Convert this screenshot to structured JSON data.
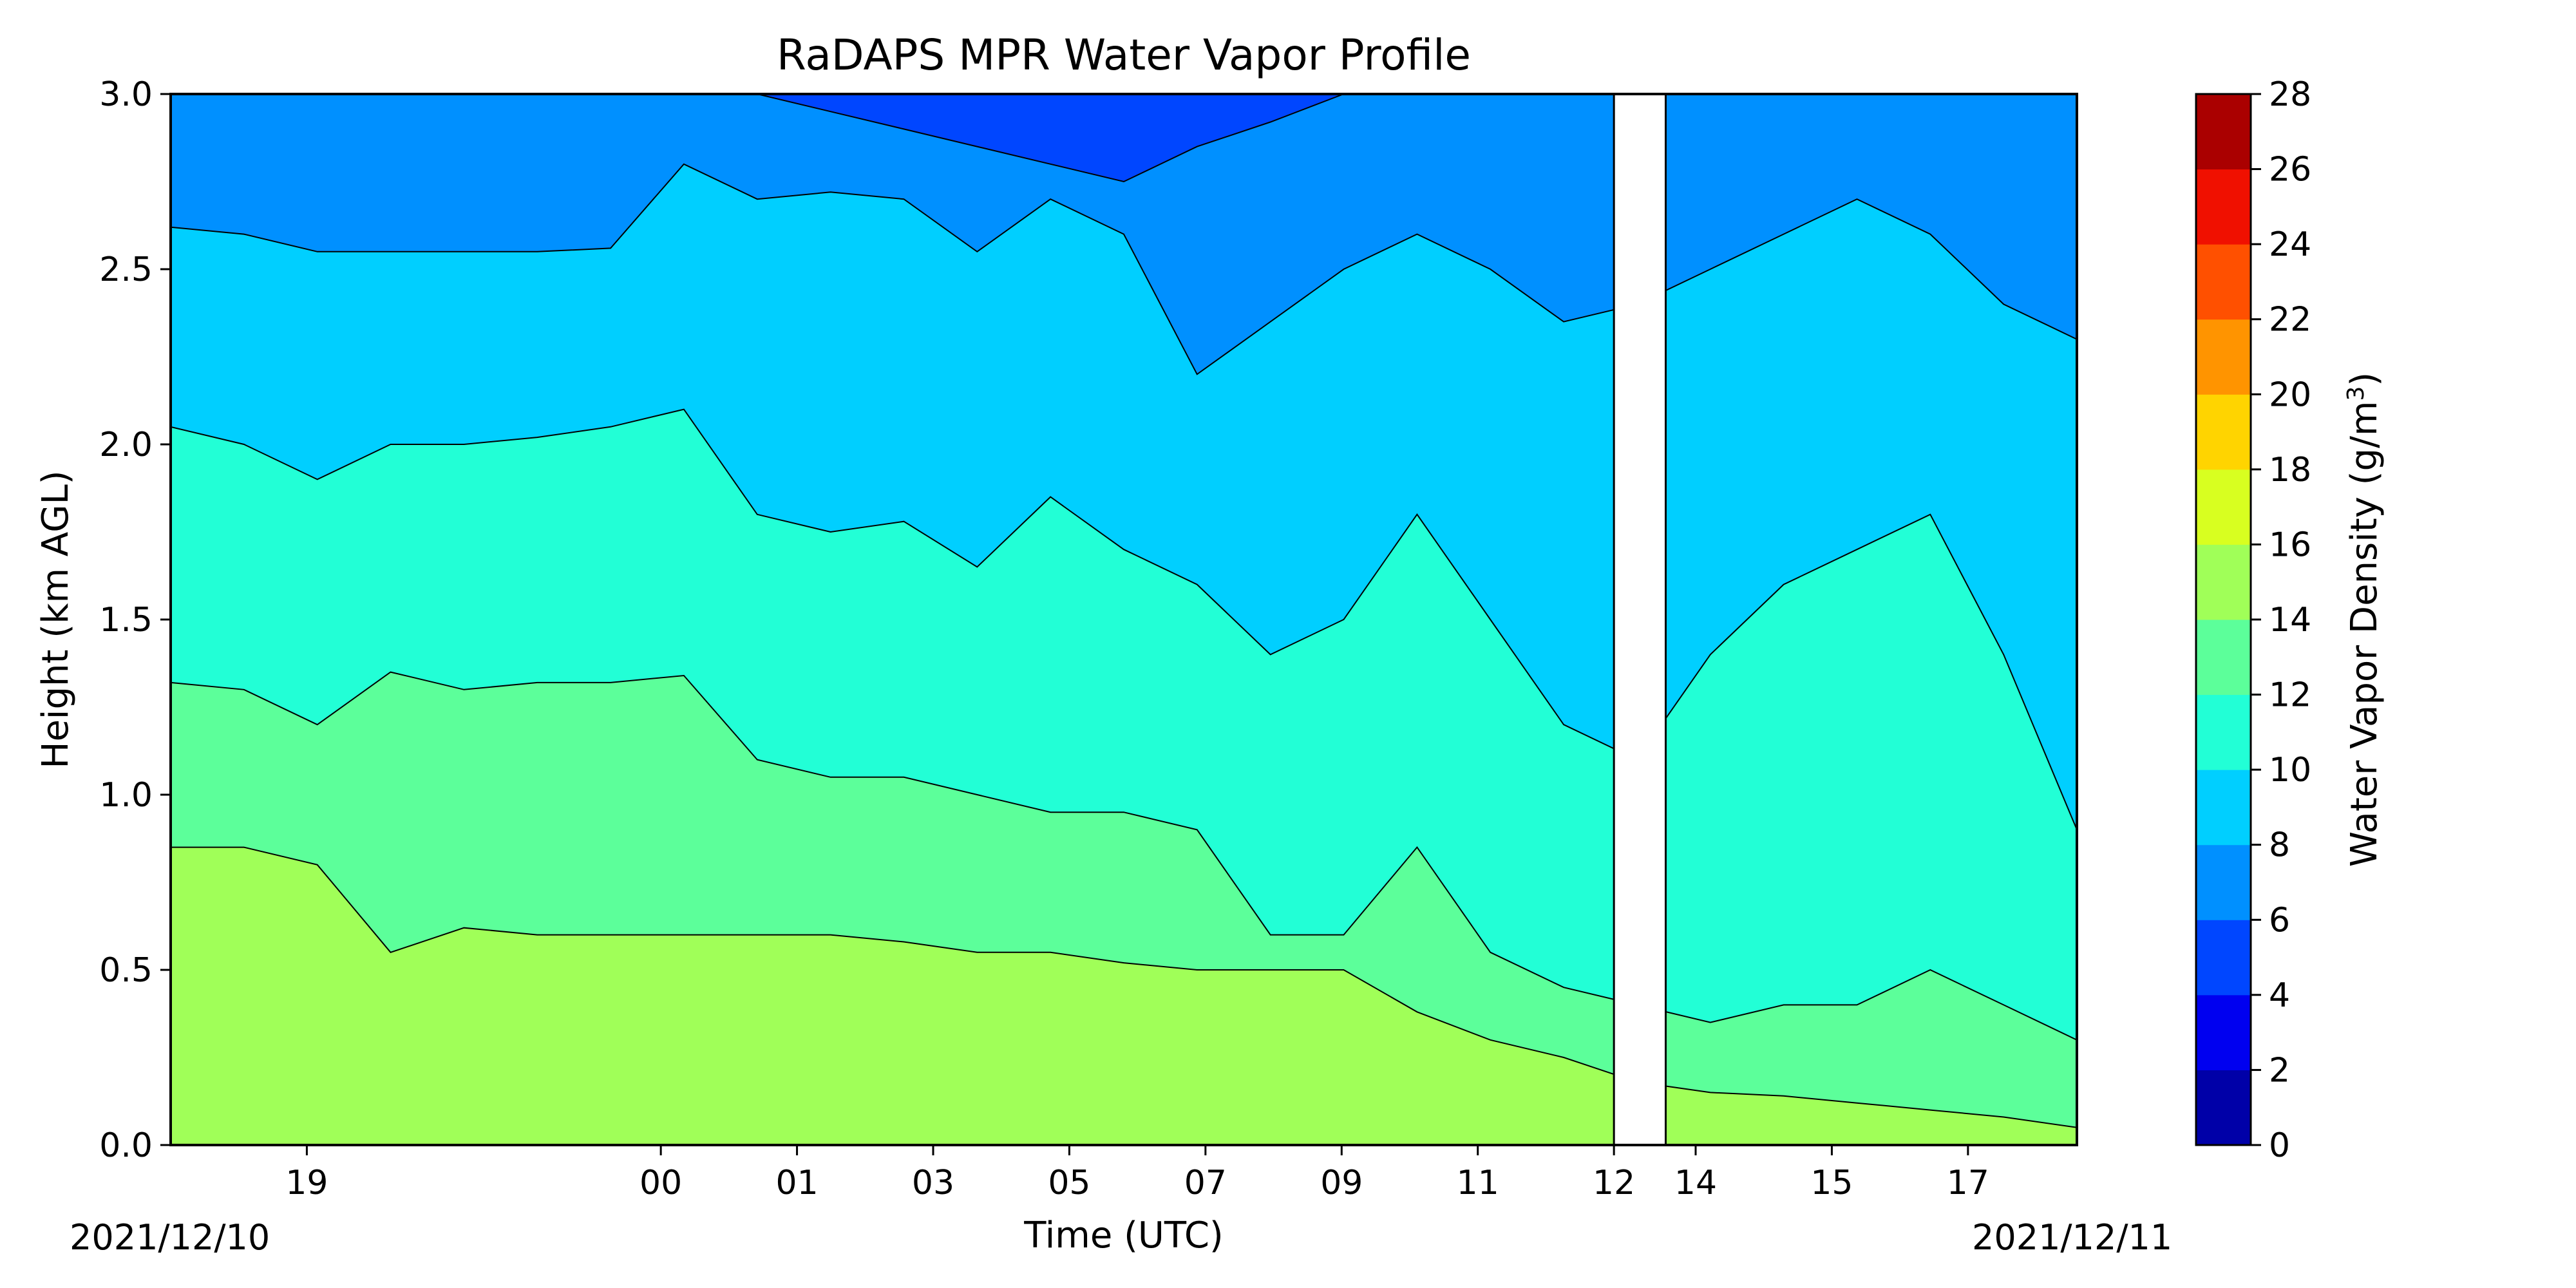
{
  "chart_data": {
    "type": "heatmap",
    "title": "RaDAPS MPR Water Vapor Profile",
    "xlabel": "Time (UTC)",
    "ylabel": "Height (km AGL)",
    "ylim": [
      0,
      3.0
    ],
    "y_ticks": [
      "0.0",
      "0.5",
      "1.0",
      "1.5",
      "2.0",
      "2.5",
      "3.0"
    ],
    "x_ticks": [
      {
        "label": "19",
        "t": 1.0
      },
      {
        "label": "00",
        "t": 3.6
      },
      {
        "label": "01",
        "t": 4.6
      },
      {
        "label": "03",
        "t": 5.6
      },
      {
        "label": "05",
        "t": 6.6
      },
      {
        "label": "07",
        "t": 7.6
      },
      {
        "label": "09",
        "t": 8.6
      },
      {
        "label": "11",
        "t": 9.6
      },
      {
        "label": "12",
        "t": 10.6
      },
      {
        "label": "14",
        "t": 11.2
      },
      {
        "label": "15",
        "t": 12.2
      },
      {
        "label": "17",
        "t": 13.2
      }
    ],
    "x_range": [
      0,
      14.0
    ],
    "start_date": "2021/12/10",
    "end_date": "2021/12/11",
    "colorbar": {
      "label_main": "Water Vapor Density (g/m",
      "label_sup": "3",
      "label_end": ")",
      "levels": [
        0,
        2,
        4,
        6,
        8,
        10,
        12,
        14,
        16,
        18,
        20,
        22,
        24,
        26,
        28
      ],
      "tick_labels": [
        "0",
        "2",
        "4",
        "6",
        "8",
        "10",
        "12",
        "14",
        "16",
        "18",
        "20",
        "22",
        "24",
        "26",
        "28"
      ],
      "colors": [
        "#0000a8",
        "#0000f0",
        "#0046ff",
        "#0090ff",
        "#00cfff",
        "#22ffd6",
        "#5cff9a",
        "#a0ff58",
        "#d8ff20",
        "#ffd400",
        "#ff9400",
        "#ff5000",
        "#f01000",
        "#aa0000"
      ]
    },
    "contours": [
      {
        "level": 14,
        "y": [
          0.85,
          0.85,
          0.8,
          0.55,
          0.62,
          0.6,
          0.6,
          0.6,
          0.6,
          0.6,
          0.58,
          0.55,
          0.55,
          0.52,
          0.5,
          0.5,
          0.5,
          0.38,
          0.3,
          0.25,
          0.18,
          0.15,
          0.14,
          0.12,
          0.1,
          0.08,
          0.05
        ]
      },
      {
        "level": 12,
        "y": [
          1.32,
          1.3,
          1.2,
          1.35,
          1.3,
          1.32,
          1.32,
          1.34,
          1.1,
          1.05,
          1.05,
          1.0,
          0.95,
          0.95,
          0.9,
          0.6,
          0.6,
          0.85,
          0.55,
          0.45,
          0.4,
          0.35,
          0.4,
          0.4,
          0.5,
          0.4,
          0.3
        ]
      },
      {
        "level": 10,
        "y": [
          2.05,
          2.0,
          1.9,
          2.0,
          2.0,
          2.02,
          2.05,
          2.1,
          1.8,
          1.75,
          1.78,
          1.65,
          1.85,
          1.7,
          1.6,
          1.4,
          1.5,
          1.8,
          1.5,
          1.2,
          1.1,
          1.4,
          1.6,
          1.7,
          1.8,
          1.4,
          0.9
        ]
      },
      {
        "level": 8,
        "y": [
          2.62,
          2.6,
          2.55,
          2.55,
          2.55,
          2.55,
          2.56,
          2.8,
          2.7,
          2.72,
          2.7,
          2.55,
          2.7,
          2.6,
          2.2,
          2.35,
          2.5,
          2.6,
          2.5,
          2.35,
          2.4,
          2.5,
          2.6,
          2.7,
          2.6,
          2.4,
          2.3
        ]
      },
      {
        "level": 6,
        "y": [
          3.0,
          3.0,
          3.0,
          3.0,
          3.0,
          3.0,
          3.0,
          3.0,
          3.0,
          2.95,
          2.9,
          2.85,
          2.8,
          2.75,
          2.85,
          2.92,
          3.0,
          3.0,
          3.0,
          3.0,
          3.0,
          3.0,
          3.0,
          3.0,
          3.0,
          3.0,
          3.0
        ]
      }
    ],
    "annotations": [
      {
        "type": "blank-gap",
        "t_start": 10.6,
        "t_end": 10.98,
        "note": "no-data column"
      }
    ]
  }
}
